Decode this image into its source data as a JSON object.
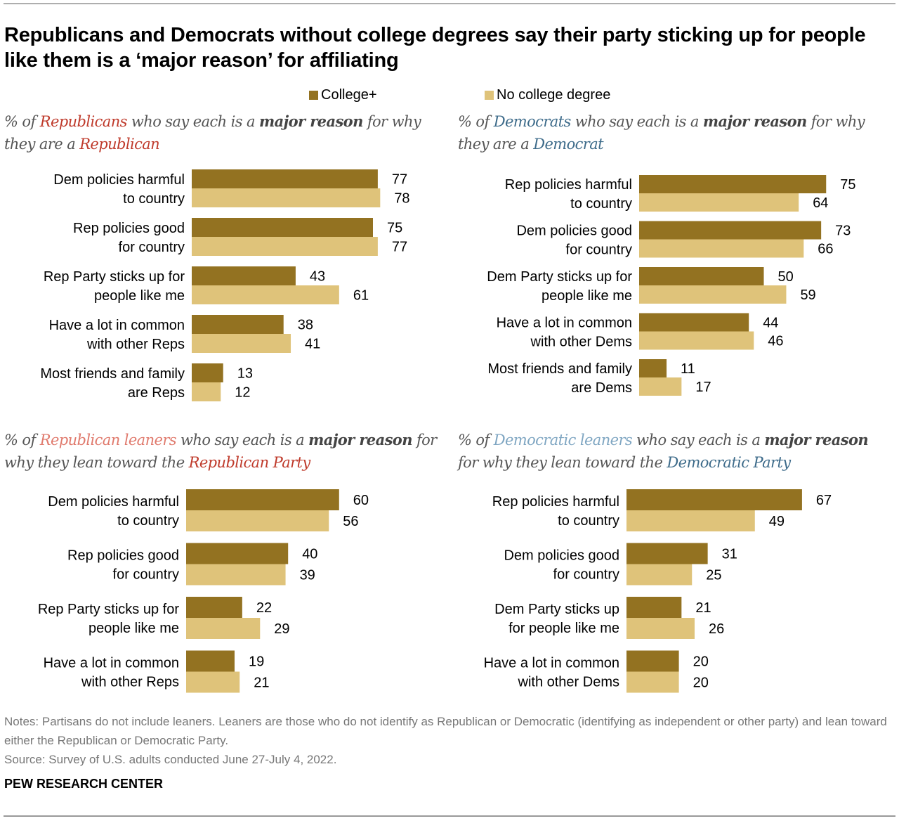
{
  "title": "Republicans and Democrats without college degrees say their party sticking up for people like them is a ‘major reason’ for affiliating",
  "legend": [
    {
      "label": "College+",
      "color": "#937221"
    },
    {
      "label": "No college degree",
      "color": "#dfc37a"
    }
  ],
  "subtitles": {
    "rep": {
      "pre": "% of ",
      "group": "Republicans",
      "mid": " who say each is a ",
      "bold": "major reason",
      "post": " for why they are a ",
      "party": "Republican"
    },
    "dem": {
      "pre": "% of ",
      "group": "Democrats",
      "mid": " who say each is a ",
      "bold": "major reason",
      "post": " for why they are a ",
      "party": "Democrat"
    },
    "rep_lean": {
      "pre": "% of ",
      "group": "Republican leaners",
      "mid": " who say each is a ",
      "bold": "major reason",
      "post": " for why they lean toward the ",
      "party": "Republican Party"
    },
    "dem_lean": {
      "pre": "% of ",
      "group": "Democratic leaners",
      "mid": " who say each is a ",
      "bold": "major reason",
      "post": " for why they lean toward the ",
      "party": "Democratic Party"
    }
  },
  "chart_data": [
    {
      "type": "bar",
      "orientation": "horizontal",
      "title": "% of Republicans who say each is a major reason for why they are a Republican",
      "categories": [
        [
          "Dem policies harmful",
          "to country"
        ],
        [
          "Rep policies good",
          "for country"
        ],
        [
          "Rep Party sticks up for",
          "people like me"
        ],
        [
          "Have a lot in common",
          "with other Reps"
        ],
        [
          "Most friends and family",
          "are Reps"
        ]
      ],
      "series": [
        {
          "name": "College+",
          "values": [
            77,
            75,
            43,
            38,
            13
          ]
        },
        {
          "name": "No college degree",
          "values": [
            78,
            77,
            61,
            41,
            12
          ]
        }
      ],
      "xlim": [
        0,
        100
      ],
      "grid": false
    },
    {
      "type": "bar",
      "orientation": "horizontal",
      "title": "% of Democrats who say each is a major reason for why they are a Democrat",
      "categories": [
        [
          "Rep policies harmful",
          "to country"
        ],
        [
          "Dem policies good",
          "for country"
        ],
        [
          "Dem Party sticks up for",
          "people like me"
        ],
        [
          "Have a lot in common",
          "with other Dems"
        ],
        [
          "Most friends and family",
          "are Dems"
        ]
      ],
      "series": [
        {
          "name": "College+",
          "values": [
            75,
            73,
            50,
            44,
            11
          ]
        },
        {
          "name": "No college degree",
          "values": [
            64,
            66,
            59,
            46,
            17
          ]
        }
      ],
      "xlim": [
        0,
        100
      ],
      "grid": false
    },
    {
      "type": "bar",
      "orientation": "horizontal",
      "title": "% of Republican leaners who say each is a major reason for why they lean toward the Republican Party",
      "categories": [
        [
          "Dem policies harmful",
          "to country"
        ],
        [
          "Rep policies good",
          "for country"
        ],
        [
          "Rep Party sticks up for",
          "people like me"
        ],
        [
          "Have a lot in common",
          "with other Reps"
        ]
      ],
      "series": [
        {
          "name": "College+",
          "values": [
            60,
            40,
            22,
            19
          ]
        },
        {
          "name": "No college degree",
          "values": [
            56,
            39,
            29,
            21
          ]
        }
      ],
      "xlim": [
        0,
        100
      ],
      "grid": false
    },
    {
      "type": "bar",
      "orientation": "horizontal",
      "title": "% of Democratic leaners who say each is a major reason for why they lean toward the Democratic Party",
      "categories": [
        [
          "Rep policies harmful",
          "to country"
        ],
        [
          "Dem policies good",
          "for country"
        ],
        [
          "Dem Party sticks up",
          "for people like me"
        ],
        [
          "Have a lot in common",
          "with other Dems"
        ]
      ],
      "series": [
        {
          "name": "College+",
          "values": [
            67,
            31,
            21,
            20
          ]
        },
        {
          "name": "No college degree",
          "values": [
            49,
            25,
            26,
            20
          ]
        }
      ],
      "xlim": [
        0,
        100
      ],
      "grid": false
    }
  ],
  "notes": "Notes: Partisans do not include leaners. Leaners are those who do not identify as Republican or Democratic (identifying as independent or other party) and lean toward either the Republican or Democratic Party.",
  "source": "Source: Survey of U.S. adults conducted June 27-July 4, 2022.",
  "brand": "PEW RESEARCH CENTER"
}
